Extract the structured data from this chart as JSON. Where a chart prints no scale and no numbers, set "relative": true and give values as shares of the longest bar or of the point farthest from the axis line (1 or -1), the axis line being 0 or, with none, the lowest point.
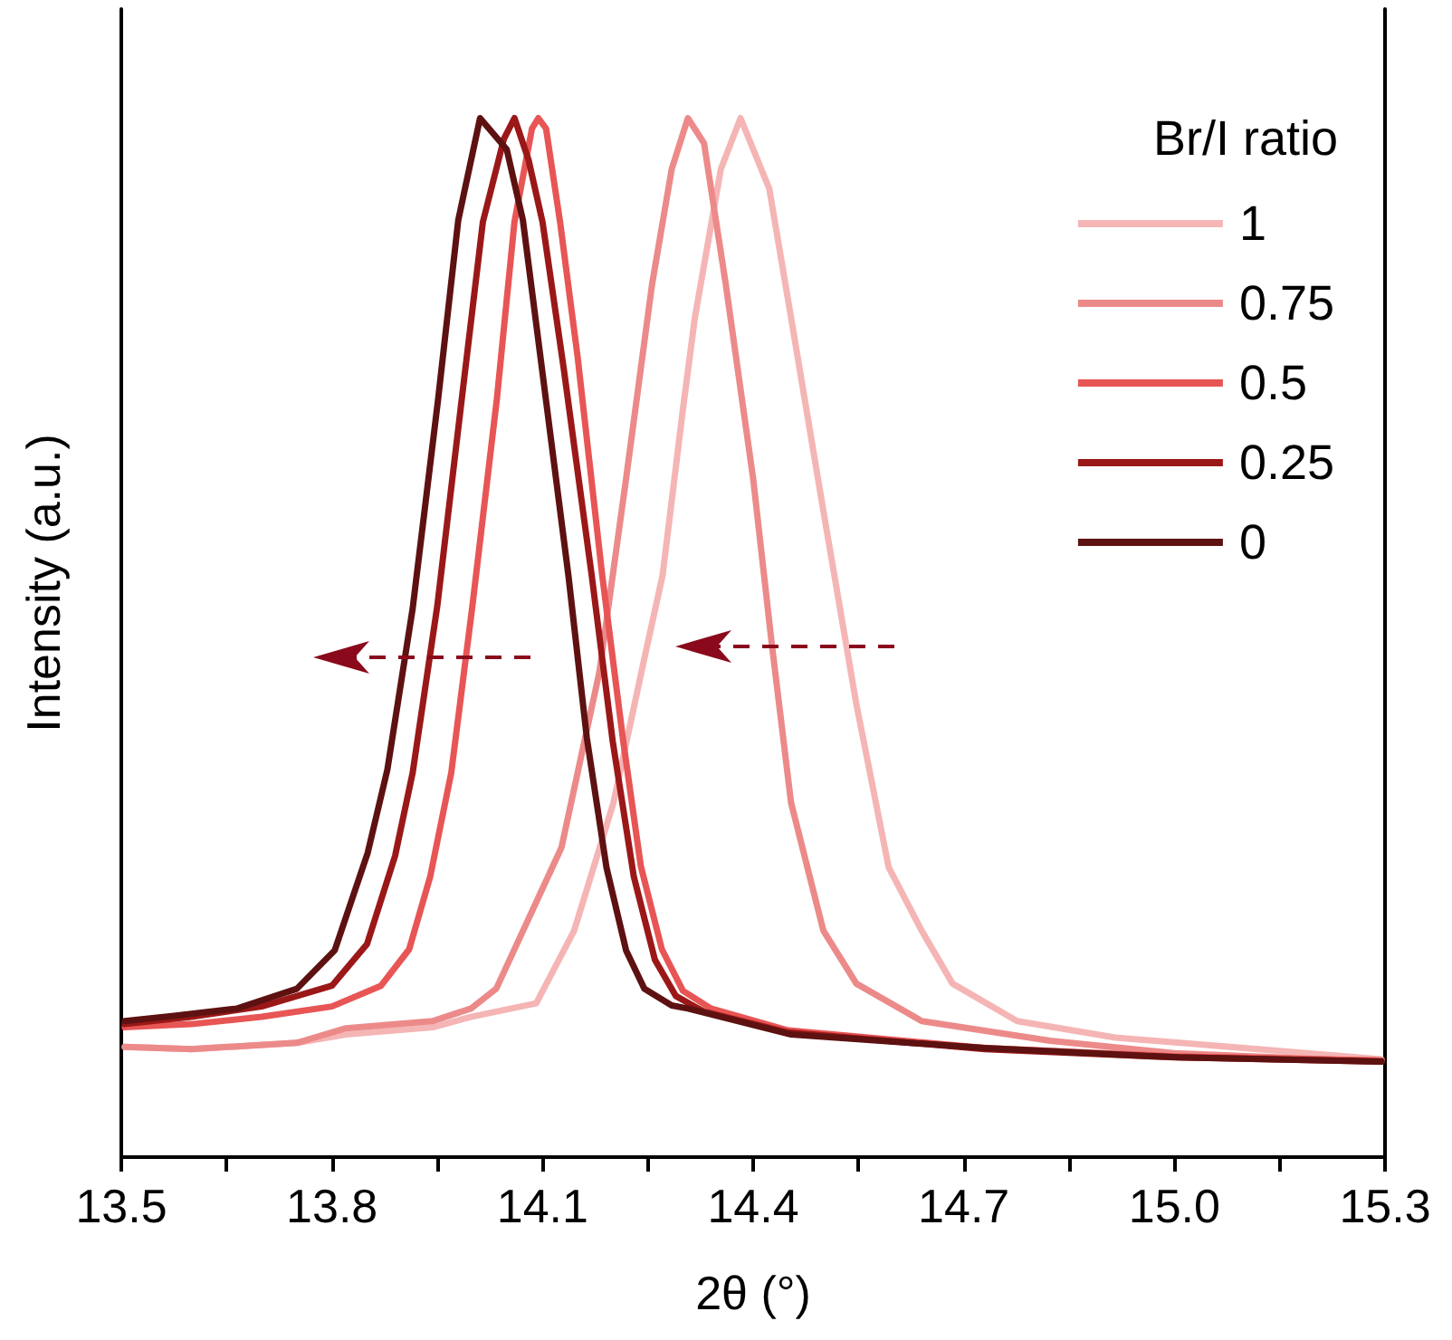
{
  "chart_data": {
    "type": "line",
    "xlabel": "2θ (°)",
    "ylabel": "Intensity (a.u.)",
    "legend_title": "Br/I ratio",
    "legend": "top right",
    "relative": true,
    "grid": false,
    "marker": "none",
    "line_style": "solid",
    "xlim": [
      13.5,
      15.3
    ],
    "xticks": [
      13.5,
      {
        "value": 13.65,
        "label": null
      },
      13.8,
      {
        "value": 13.95,
        "label": null
      },
      14.1,
      {
        "value": 14.25,
        "label": null
      },
      14.4,
      {
        "value": 14.55,
        "label": null
      },
      14.7,
      {
        "value": 14.85,
        "label": null
      },
      {
        "value": 15.0,
        "label": "15.0"
      },
      {
        "value": 15.15,
        "label": null
      },
      15.3
    ],
    "series": [
      {
        "name": "1",
        "color": "#f5b5b5",
        "x": [
          13.505,
          13.6,
          13.75,
          13.82,
          13.944,
          13.998,
          14.091,
          14.145,
          14.201,
          14.245,
          14.271,
          14.3,
          14.317,
          14.354,
          14.382,
          14.423,
          14.454,
          14.5,
          14.547,
          14.593,
          14.64,
          14.684,
          14.776,
          14.916,
          15.099,
          15.295
        ],
        "values": [
          0.106,
          0.104,
          0.11,
          0.118,
          0.125,
          0.135,
          0.148,
          0.218,
          0.341,
          0.48,
          0.56,
          0.72,
          0.808,
          0.951,
          1.0,
          0.932,
          0.808,
          0.622,
          0.436,
          0.279,
          0.218,
          0.167,
          0.131,
          0.115,
          0.105,
          0.094
        ]
      },
      {
        "name": "0.75",
        "color": "#ec8a8a",
        "x": [
          13.505,
          13.6,
          13.75,
          13.82,
          13.944,
          13.998,
          14.034,
          14.127,
          14.181,
          14.219,
          14.256,
          14.284,
          14.307,
          14.33,
          14.361,
          14.4,
          14.426,
          14.454,
          14.5,
          14.547,
          14.64,
          14.823,
          15.0,
          15.295
        ],
        "values": [
          0.106,
          0.104,
          0.11,
          0.124,
          0.131,
          0.143,
          0.162,
          0.298,
          0.467,
          0.653,
          0.84,
          0.951,
          1.0,
          0.976,
          0.84,
          0.653,
          0.497,
          0.341,
          0.218,
          0.167,
          0.131,
          0.112,
          0.1,
          0.092
        ]
      },
      {
        "name": "0.5",
        "color": "#e85555",
        "x": [
          13.505,
          13.6,
          13.7,
          13.8,
          13.87,
          13.91,
          13.94,
          13.97,
          14.0,
          14.035,
          14.06,
          14.085,
          14.094,
          14.105,
          14.125,
          14.15,
          14.185,
          14.215,
          14.24,
          14.27,
          14.3,
          14.34,
          14.45,
          14.73,
          15.0,
          15.295
        ],
        "values": [
          0.125,
          0.128,
          0.135,
          0.145,
          0.165,
          0.2,
          0.27,
          0.37,
          0.53,
          0.73,
          0.9,
          0.99,
          1.0,
          0.99,
          0.9,
          0.77,
          0.56,
          0.4,
          0.28,
          0.2,
          0.16,
          0.143,
          0.122,
          0.105,
          0.097,
          0.093
        ]
      },
      {
        "name": "0.25",
        "color": "#9b1818",
        "x": [
          13.505,
          13.6,
          13.7,
          13.8,
          13.85,
          13.89,
          13.915,
          13.95,
          13.985,
          14.015,
          14.045,
          14.06,
          14.08,
          14.1,
          14.13,
          14.17,
          14.2,
          14.23,
          14.26,
          14.29,
          14.33,
          14.45,
          14.73,
          15.0,
          15.295
        ],
        "values": [
          0.128,
          0.135,
          0.145,
          0.165,
          0.205,
          0.29,
          0.37,
          0.53,
          0.73,
          0.9,
          0.98,
          1.0,
          0.96,
          0.9,
          0.76,
          0.56,
          0.4,
          0.27,
          0.19,
          0.155,
          0.14,
          0.12,
          0.104,
          0.096,
          0.092
        ]
      },
      {
        "name": "0",
        "color": "#5e1111",
        "x": [
          13.505,
          13.575,
          13.665,
          13.75,
          13.804,
          13.851,
          13.879,
          13.915,
          13.951,
          13.98,
          14.011,
          14.049,
          14.072,
          14.098,
          14.137,
          14.163,
          14.191,
          14.219,
          14.245,
          14.284,
          14.307,
          14.454,
          14.73,
          15.006,
          15.295
        ],
        "values": [
          0.131,
          0.136,
          0.143,
          0.162,
          0.199,
          0.293,
          0.373,
          0.528,
          0.728,
          0.902,
          1.0,
          0.97,
          0.902,
          0.765,
          0.559,
          0.404,
          0.279,
          0.199,
          0.162,
          0.146,
          0.143,
          0.118,
          0.105,
          0.096,
          0.092
        ]
      }
    ]
  }
}
